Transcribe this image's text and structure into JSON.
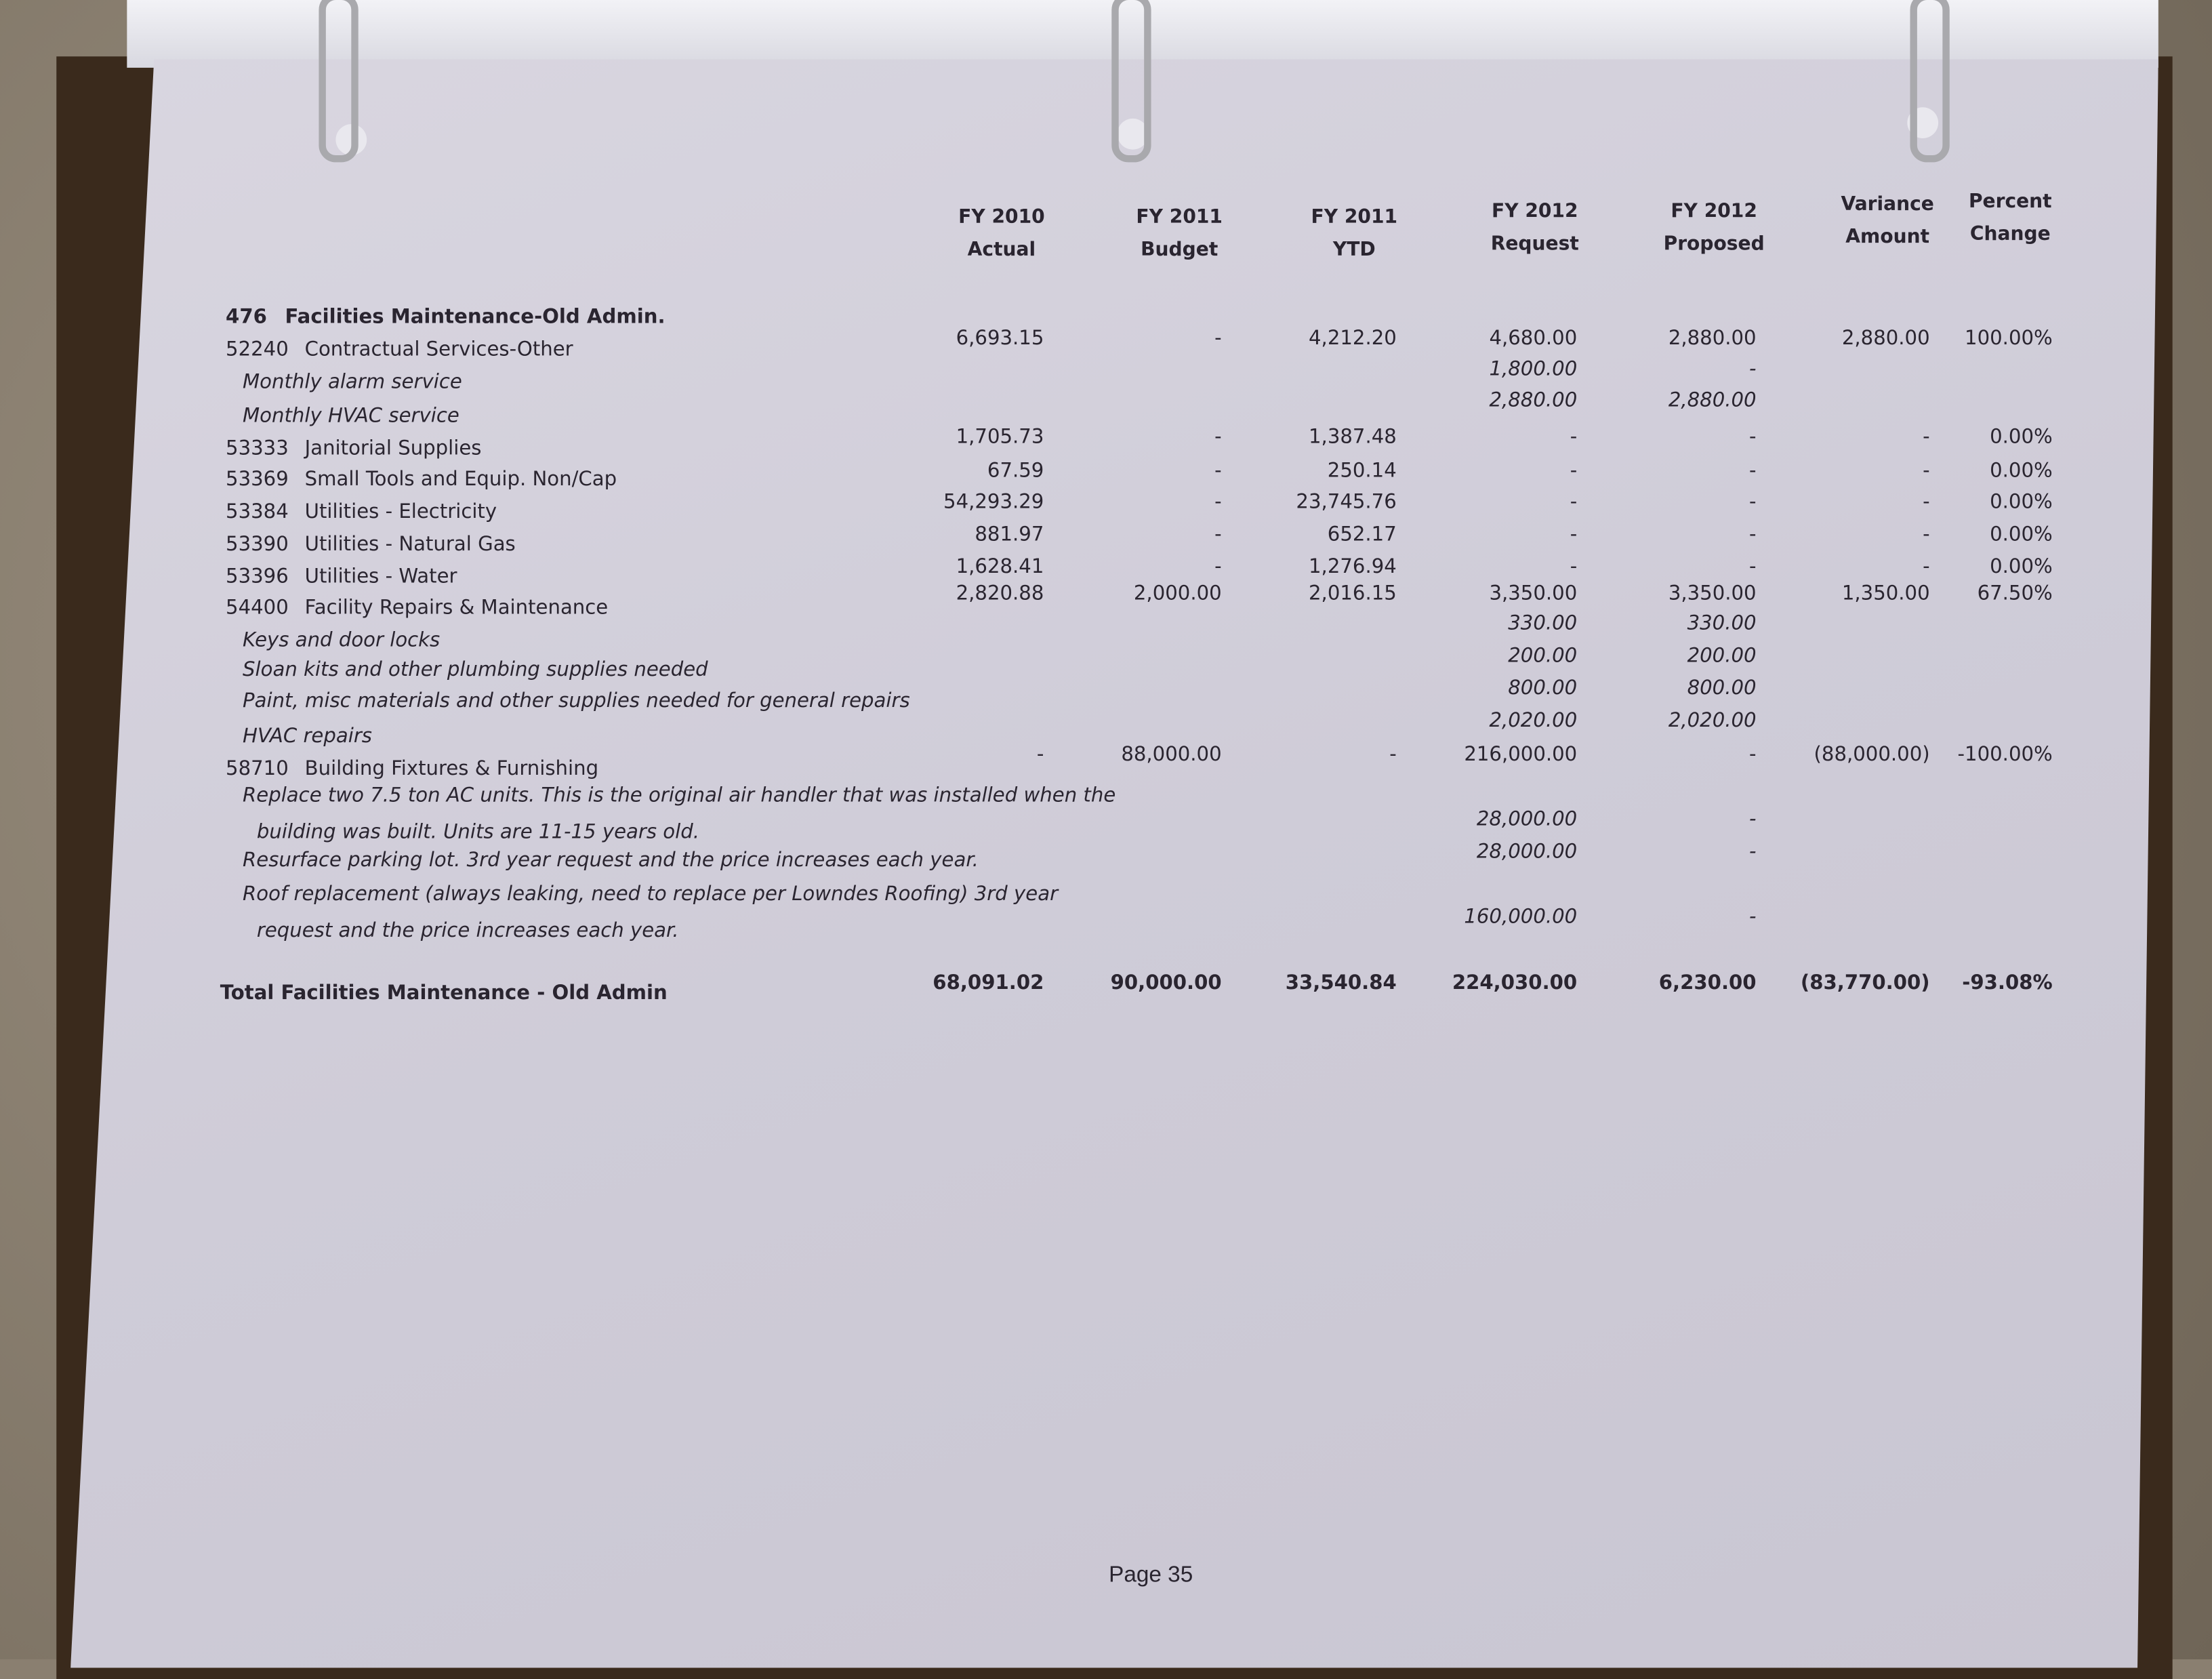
{
  "columns": [
    {
      "line1": "FY 2010",
      "line2": "Actual"
    },
    {
      "line1": "FY 2011",
      "line2": "Budget"
    },
    {
      "line1": "FY 2011",
      "line2": "YTD"
    },
    {
      "line1": "FY 2012",
      "line2": "Request"
    },
    {
      "line1": "FY 2012",
      "line2": "Proposed"
    },
    {
      "line1": "Variance",
      "line2": "Amount"
    },
    {
      "line1": "Percent",
      "line2": "Change"
    }
  ],
  "section": {
    "code": "476",
    "title": "Facilities Maintenance-Old Admin."
  },
  "rows": [
    {
      "code": "52240",
      "label": "Contractual Services-Other",
      "values": [
        "6,693.15",
        "-",
        "4,212.20",
        "4,680.00",
        "2,880.00",
        "2,880.00",
        "100.00%"
      ]
    },
    {
      "label": "Monthly alarm service",
      "note": true,
      "values": [
        "",
        "",
        "",
        "1,800.00",
        "-",
        "",
        ""
      ]
    },
    {
      "label": "Monthly HVAC service",
      "note": true,
      "values": [
        "",
        "",
        "",
        "2,880.00",
        "2,880.00",
        "",
        ""
      ]
    },
    {
      "code": "53333",
      "label": "Janitorial Supplies",
      "values": [
        "1,705.73",
        "-",
        "1,387.48",
        "-",
        "-",
        "-",
        "0.00%"
      ]
    },
    {
      "code": "53369",
      "label": "Small Tools and Equip. Non/Cap",
      "values": [
        "67.59",
        "-",
        "250.14",
        "-",
        "-",
        "-",
        "0.00%"
      ]
    },
    {
      "code": "53384",
      "label": "Utilities - Electricity",
      "values": [
        "54,293.29",
        "-",
        "23,745.76",
        "-",
        "-",
        "-",
        "0.00%"
      ]
    },
    {
      "code": "53390",
      "label": "Utilities - Natural Gas",
      "values": [
        "881.97",
        "-",
        "652.17",
        "-",
        "-",
        "-",
        "0.00%"
      ]
    },
    {
      "code": "53396",
      "label": "Utilities - Water",
      "values": [
        "1,628.41",
        "-",
        "1,276.94",
        "-",
        "-",
        "-",
        "0.00%"
      ]
    },
    {
      "code": "54400",
      "label": "Facility Repairs & Maintenance",
      "values": [
        "2,820.88",
        "2,000.00",
        "2,016.15",
        "3,350.00",
        "3,350.00",
        "1,350.00",
        "67.50%"
      ]
    },
    {
      "label": "Keys and door locks",
      "note": true,
      "values": [
        "",
        "",
        "",
        "330.00",
        "330.00",
        "",
        ""
      ]
    },
    {
      "label": "Sloan kits and other plumbing supplies needed",
      "note": true,
      "values": [
        "",
        "",
        "",
        "200.00",
        "200.00",
        "",
        ""
      ]
    },
    {
      "label": "Paint, misc materials and other supplies needed for general repairs",
      "note": true,
      "values": [
        "",
        "",
        "",
        "800.00",
        "800.00",
        "",
        ""
      ]
    },
    {
      "label": "HVAC repairs",
      "note": true,
      "values": [
        "",
        "",
        "",
        "2,020.00",
        "2,020.00",
        "",
        ""
      ]
    },
    {
      "code": "58710",
      "label": "Building Fixtures & Furnishing",
      "values": [
        "-",
        "88,000.00",
        "-",
        "216,000.00",
        "-",
        "(88,000.00)",
        "-100.00%"
      ]
    },
    {
      "label": "Replace two 7.5 ton AC units.  This is the original air handler that was installed when the",
      "label2": "building was built.  Units are 11-15 years old.",
      "note": true,
      "values": [
        "",
        "",
        "",
        "28,000.00",
        "-",
        "",
        ""
      ]
    },
    {
      "label": "Resurface parking lot.  3rd year request and the price increases each year.",
      "note": true,
      "values": [
        "",
        "",
        "",
        "28,000.00",
        "-",
        "",
        ""
      ]
    },
    {
      "label": "Roof replacement (always leaking, need to replace per Lowndes Roofing)  3rd year",
      "label2": "request and the price increases each year.",
      "note": true,
      "values": [
        "",
        "",
        "",
        "160,000.00",
        "-",
        "",
        ""
      ]
    }
  ],
  "total": {
    "label": "Total Facilities Maintenance - Old Admin",
    "values": [
      "68,091.02",
      "90,000.00",
      "33,540.84",
      "224,030.00",
      "6,230.00",
      "(83,770.00)",
      "-93.08%"
    ]
  },
  "footer": {
    "page": "Page 35"
  }
}
